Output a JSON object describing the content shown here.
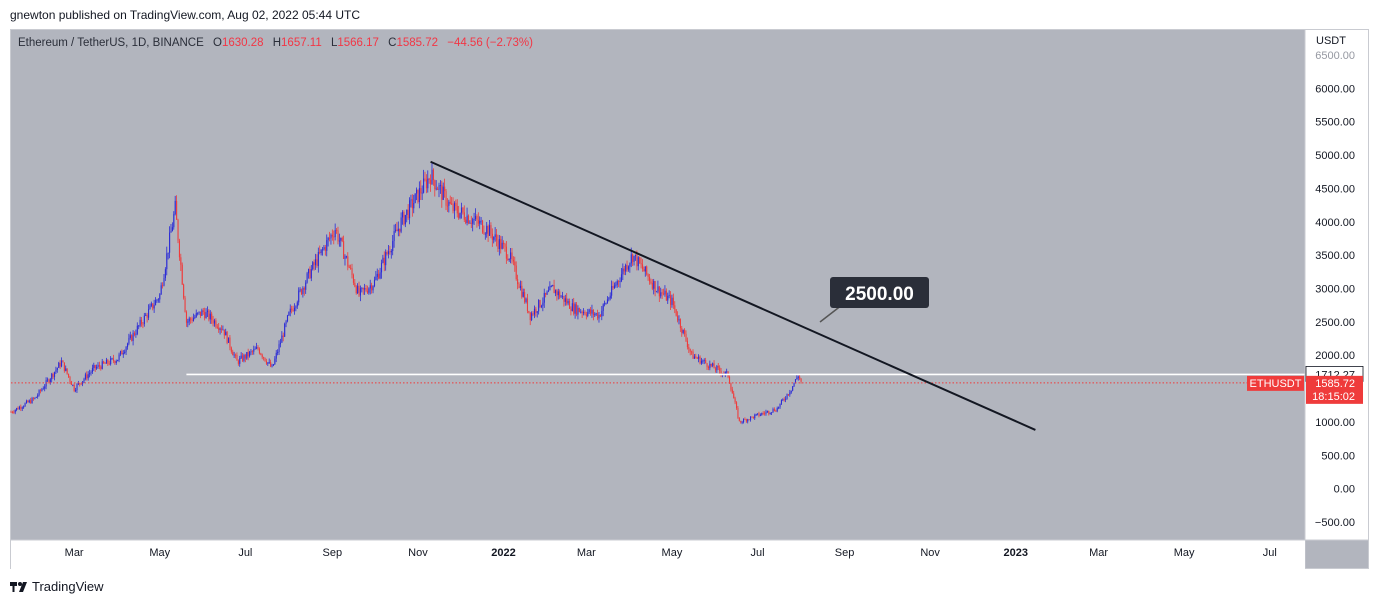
{
  "header": {
    "published_text": "gnewton published on TradingView.com, Aug 02, 2022 05:44 UTC"
  },
  "legend": {
    "symbol": "Ethereum / TetherUS, 1D, BINANCE",
    "o_label": "O",
    "o_value": "1630.28",
    "h_label": "H",
    "h_value": "1657.11",
    "l_label": "L",
    "l_value": "1566.17",
    "c_label": "C",
    "c_value": "1585.72",
    "change": "−44.56 (−2.73%)"
  },
  "footer": {
    "brand": "TradingView"
  },
  "colors": {
    "up": "#2b2bd6",
    "down": "#ef3b3b",
    "background": "#b2b5be",
    "trendline": "#131722",
    "support": "#ffffff",
    "price_line": "#ef3b3b"
  },
  "chart_data": {
    "type": "candlestick",
    "symbol": "ETHUSDT",
    "currency_label": "USDT",
    "y_ticks": [
      "6500.00",
      "6000.00",
      "5500.00",
      "5000.00",
      "4500.00",
      "4000.00",
      "3500.00",
      "3000.00",
      "2500.00",
      "2000.00",
      "1000.00",
      "500.00",
      "0.00",
      "−500.00"
    ],
    "x_ticks": [
      "Mar",
      "May",
      "Jul",
      "Sep",
      "Nov",
      "2022",
      "Mar",
      "May",
      "Jul",
      "Sep",
      "Nov",
      "2023",
      "Mar",
      "May",
      "Jul"
    ],
    "ylim": [
      -700,
      7000
    ],
    "approx_close_series": [
      [
        "2021-01-15",
        1150
      ],
      [
        "2021-02-01",
        1350
      ],
      [
        "2021-02-20",
        1900
      ],
      [
        "2021-03-01",
        1500
      ],
      [
        "2021-03-15",
        1800
      ],
      [
        "2021-04-01",
        1950
      ],
      [
        "2021-04-15",
        2400
      ],
      [
        "2021-05-01",
        2900
      ],
      [
        "2021-05-12",
        4200
      ],
      [
        "2021-05-20",
        2500
      ],
      [
        "2021-06-01",
        2650
      ],
      [
        "2021-06-15",
        2400
      ],
      [
        "2021-06-25",
        1900
      ],
      [
        "2021-07-10",
        2100
      ],
      [
        "2021-07-20",
        1800
      ],
      [
        "2021-08-01",
        2600
      ],
      [
        "2021-08-15",
        3200
      ],
      [
        "2021-09-03",
        3900
      ],
      [
        "2021-09-20",
        2900
      ],
      [
        "2021-10-01",
        3100
      ],
      [
        "2021-10-20",
        4000
      ],
      [
        "2021-11-01",
        4400
      ],
      [
        "2021-11-10",
        4700
      ],
      [
        "2021-11-25",
        4200
      ],
      [
        "2021-12-05",
        4100
      ],
      [
        "2021-12-20",
        3900
      ],
      [
        "2022-01-05",
        3500
      ],
      [
        "2022-01-20",
        2600
      ],
      [
        "2022-02-05",
        3000
      ],
      [
        "2022-02-20",
        2700
      ],
      [
        "2022-03-10",
        2600
      ],
      [
        "2022-03-28",
        3300
      ],
      [
        "2022-04-03",
        3500
      ],
      [
        "2022-04-20",
        3000
      ],
      [
        "2022-05-01",
        2800
      ],
      [
        "2022-05-15",
        2000
      ],
      [
        "2022-06-01",
        1800
      ],
      [
        "2022-06-10",
        1700
      ],
      [
        "2022-06-18",
        1000
      ],
      [
        "2022-07-01",
        1100
      ],
      [
        "2022-07-15",
        1200
      ],
      [
        "2022-07-25",
        1500
      ],
      [
        "2022-07-30",
        1700
      ],
      [
        "2022-08-01",
        1600
      ]
    ],
    "trendline": {
      "from": [
        "2021-11-10",
        4900
      ],
      "to": [
        "2023-01-15",
        880
      ]
    },
    "trendline_label": "2500.00",
    "support_line": {
      "from": "2021-05-20",
      "value": 1712.27,
      "label": "1712.27"
    },
    "last_price": {
      "value": 1585.72,
      "label": "1585.72",
      "countdown": "18:15:02"
    }
  }
}
